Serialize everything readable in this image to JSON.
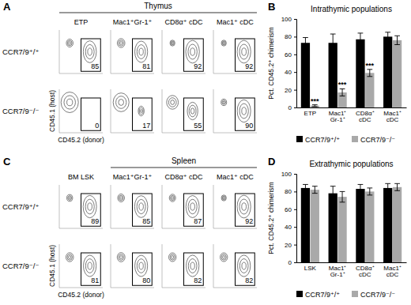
{
  "chart_data": [
    {
      "type": "flow_grid",
      "panel": "A",
      "title": "Thymus",
      "columns": [
        "ETP",
        "Mac1⁺Gr-1⁺",
        "CD8α⁺ cDC",
        "Mac1⁺ cDC"
      ],
      "rows": [
        "CCR7/9⁺/⁺",
        "CCR7/9⁻/⁻"
      ],
      "values": [
        [
          85,
          81,
          92,
          92
        ],
        [
          0,
          17,
          55,
          90
        ]
      ],
      "xlabel": "CD45.2 (donor)",
      "ylabel": "CD45.1 (host)"
    },
    {
      "type": "bar",
      "panel": "B",
      "title": "Intrathymic populations",
      "categories": [
        "ETP",
        "Mac1⁺ Gr-1⁺",
        "CD8α⁺ cDC",
        "Mac1⁺ cDC"
      ],
      "series": [
        {
          "name": "CCR7/9⁺/⁺",
          "color": "#000000",
          "values": [
            73,
            73,
            77,
            80
          ],
          "errors": [
            6,
            10,
            7,
            5
          ]
        },
        {
          "name": "CCR7/9⁻/⁻",
          "color": "#a9a9a9",
          "values": [
            2,
            17,
            39,
            76
          ],
          "errors": [
            1,
            4,
            4,
            5
          ]
        }
      ],
      "ylabel": "Pct. CD45.2⁺ chimerism",
      "ylim": [
        0,
        100
      ],
      "yticks": [
        0,
        20,
        40,
        60,
        80,
        100
      ],
      "annotations": [
        {
          "text": "***",
          "category": "ETP"
        },
        {
          "text": "***",
          "category": "Mac1⁺ Gr-1⁺"
        },
        {
          "text": "***",
          "category": "CD8α⁺ cDC"
        }
      ],
      "legend": "bottom",
      "grid": false
    },
    {
      "type": "flow_grid",
      "panel": "C",
      "title": "Spleen",
      "columns": [
        "BM LSK",
        "Mac1⁺Gr-1⁺",
        "CD8α⁺ cDC",
        "Mac1⁺ cDC"
      ],
      "rows": [
        "CCR7/9⁺/⁺",
        "CCR7/9⁻/⁻"
      ],
      "values": [
        [
          89,
          85,
          87,
          92
        ],
        [
          81,
          80,
          82,
          82
        ]
      ],
      "xlabel": "CD45.2 (donor)",
      "ylabel": "CD45.1 (host)"
    },
    {
      "type": "bar",
      "panel": "D",
      "title": "Extrathymic populations",
      "categories": [
        "LSK",
        "Mac1⁺ Gr-1⁺",
        "CD8α⁺ cDC",
        "Mac1⁺ cDC"
      ],
      "series": [
        {
          "name": "CCR7/9⁺/⁺",
          "color": "#000000",
          "values": [
            84,
            78,
            83,
            84
          ],
          "errors": [
            4,
            8,
            5,
            5
          ]
        },
        {
          "name": "CCR7/9⁻/⁻",
          "color": "#a9a9a9",
          "values": [
            82,
            74,
            80,
            85
          ],
          "errors": [
            4,
            6,
            4,
            4
          ]
        }
      ],
      "ylabel": "Pct. CD45.2⁺ chimerism",
      "ylim": [
        0,
        100
      ],
      "yticks": [
        0,
        20,
        40,
        60,
        80,
        100
      ],
      "legend": "bottom",
      "grid": false
    }
  ]
}
